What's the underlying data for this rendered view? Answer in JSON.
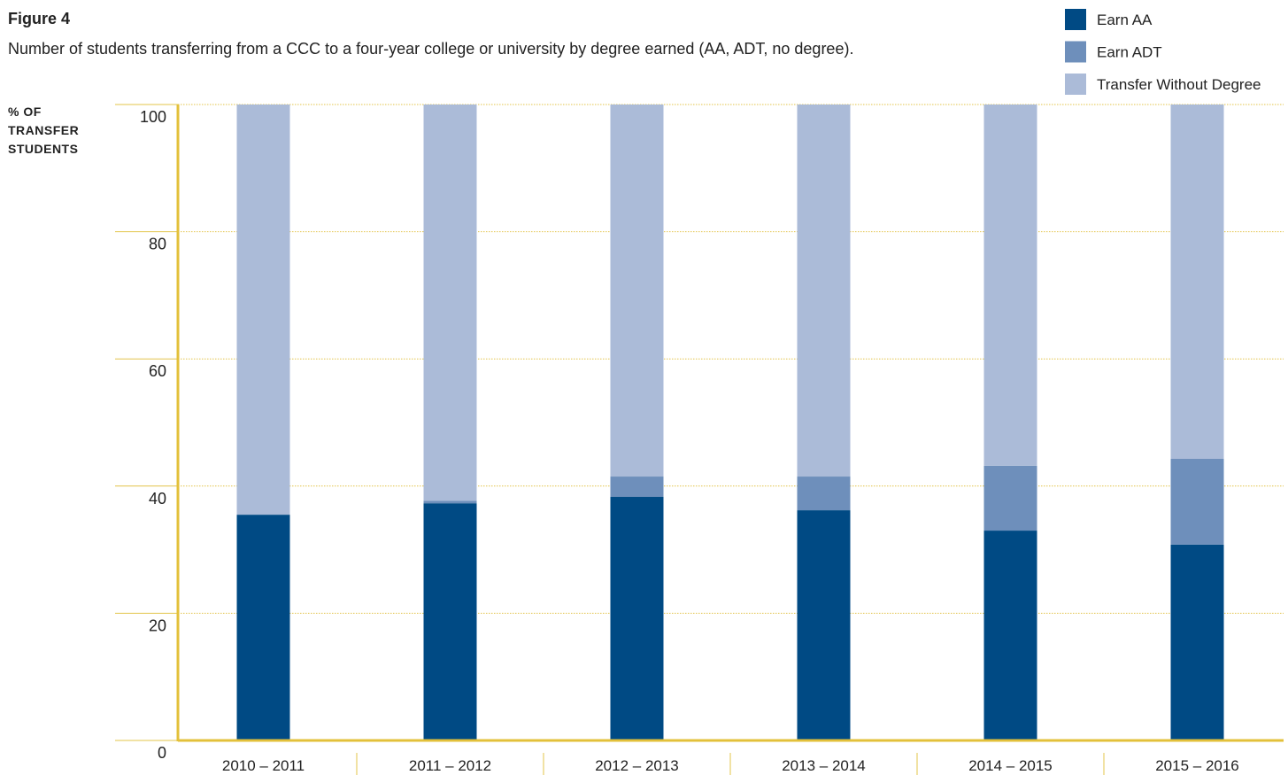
{
  "chart_data": {
    "type": "stacked_bar",
    "figure_label": "Figure 4",
    "title": "Number of students transferring from a CCC to a four-year college or university by degree earned (AA, ADT, no degree).",
    "y_label": [
      "% OF",
      "TRANSFER",
      "STUDENTS"
    ],
    "categories": [
      "2010 – 2011",
      "2011 – 2012",
      "2012 – 2013",
      "2013 – 2014",
      "2014 – 2015",
      "2015 – 2016"
    ],
    "series": [
      {
        "name": "Earn AA",
        "color": "#004a84",
        "values": [
          35.5,
          37.3,
          38.3,
          36.2,
          33.0,
          30.8
        ]
      },
      {
        "name": "Earn ADT",
        "color": "#6e8fbb",
        "values": [
          0,
          0.4,
          3.2,
          5.3,
          10.2,
          13.5
        ]
      },
      {
        "name": "Transfer Without Degree",
        "color": "#abbbd8",
        "values": [
          64.5,
          62.3,
          58.5,
          58.5,
          56.8,
          55.7
        ]
      }
    ],
    "ylim": [
      0,
      100
    ],
    "yticks": [
      0,
      20,
      40,
      60,
      80,
      100
    ],
    "grid": true,
    "legend": "top-right"
  }
}
